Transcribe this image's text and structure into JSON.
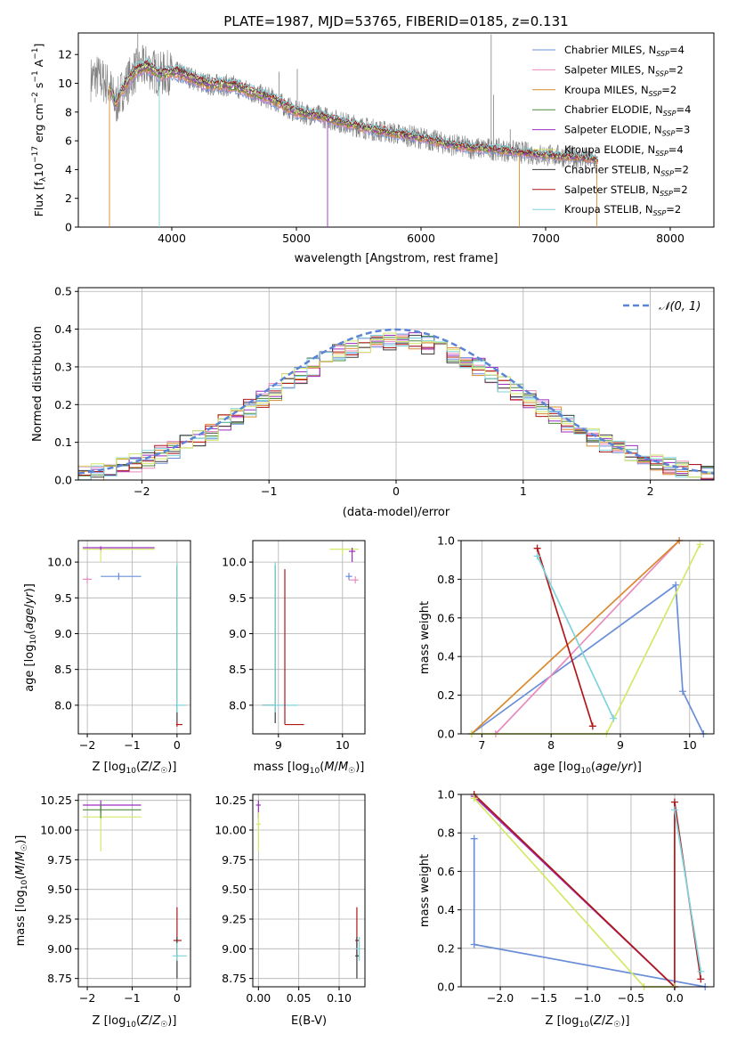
{
  "figure": {
    "title": "PLATE=1987, MJD=53765, FIBERID=0185, z=0.131"
  },
  "series_names": [
    "Chabrier MILES, N_SSP=4",
    "Salpeter MILES, N_SSP=2",
    "Kroupa MILES, N_SSP=2",
    "Chabrier ELODIE, N_SSP=4",
    "Salpeter ELODIE, N_SSP=3",
    "Kroupa ELODIE, N_SSP=4",
    "Chabrier STELIB, N_SSP=2",
    "Salpeter STELIB, N_SSP=2",
    "Kroupa STELIB, N_SSP=2"
  ],
  "legend_main": [
    {
      "prefix": "Chabrier MILES, N",
      "sub": "SSP",
      "suffix": "=4"
    },
    {
      "prefix": "Salpeter MILES, N",
      "sub": "SSP",
      "suffix": "=2"
    },
    {
      "prefix": "Kroupa MILES, N",
      "sub": "SSP",
      "suffix": "=2"
    },
    {
      "prefix": "Chabrier ELODIE, N",
      "sub": "SSP",
      "suffix": "=4"
    },
    {
      "prefix": "Salpeter ELODIE, N",
      "sub": "SSP",
      "suffix": "=3"
    },
    {
      "prefix": "Kroupa ELODIE, N",
      "sub": "SSP",
      "suffix": "=4"
    },
    {
      "prefix": "Chabrier STELIB, N",
      "sub": "SSP",
      "suffix": "=2"
    },
    {
      "prefix": "Salpeter STELIB, N",
      "sub": "SSP",
      "suffix": "=2"
    },
    {
      "prefix": "Kroupa STELIB, N",
      "sub": "SSP",
      "suffix": "=2"
    }
  ],
  "colors": {
    "data": "#808080",
    "series": [
      "#6a8fd8",
      "#e88bbf",
      "#d98a2e",
      "#4f8a3c",
      "#9a2fbf",
      "#d4e86a",
      "#3a3a3a",
      "#b01818",
      "#7ed4dc"
    ],
    "normal": "#5b84d6",
    "grid": "#b0b0b0"
  },
  "chart_data": [
    {
      "id": "spectrum",
      "type": "line",
      "title": "PLATE=1987, MJD=53765, FIBERID=0185, z=0.131",
      "xlabel": "wavelength [Angstrom, rest frame]",
      "ylabel": "Flux [f_λ 10^-17 erg cm^-2 s^-1 A^-1]",
      "xlim": [
        3250,
        8350
      ],
      "ylim": [
        0,
        13.5
      ],
      "xticks": [
        4000,
        5000,
        6000,
        7000,
        8000
      ],
      "yticks": [
        0,
        2,
        4,
        6,
        8,
        10,
        12
      ],
      "grid": false,
      "legend": "top-right",
      "data_spectrum": {
        "x": [
          3350,
          3400,
          3500,
          3550,
          3600,
          3700,
          3800,
          3900,
          4000,
          4100,
          4200,
          4300,
          4400,
          4500,
          4600,
          4800,
          5000,
          5200,
          5400,
          5600,
          5800,
          6000,
          6200,
          6400,
          6600,
          6800,
          7000,
          7200,
          7400
        ],
        "y": [
          10.3,
          10.5,
          9.8,
          8.5,
          9.5,
          10.8,
          11.2,
          10.6,
          10.8,
          10.6,
          10.2,
          9.9,
          9.9,
          9.8,
          9.5,
          8.9,
          8.0,
          7.7,
          7.2,
          6.8,
          6.5,
          6.2,
          5.8,
          5.5,
          5.4,
          5.2,
          5.0,
          4.9,
          4.7
        ]
      },
      "model_x_range": [
        3500,
        7420
      ]
    },
    {
      "id": "residuals",
      "type": "histogram",
      "xlabel": "(data-model)/error",
      "ylabel": "Normed distribution",
      "xlim": [
        -2.5,
        2.5
      ],
      "ylim": [
        0,
        0.51
      ],
      "xticks": [
        -2,
        -1,
        0,
        1,
        2
      ],
      "yticks": [
        0.0,
        0.1,
        0.2,
        0.3,
        0.4,
        0.5
      ],
      "grid": true,
      "legend": "top-right",
      "reference_curve": {
        "name": "N(0,1)",
        "mean": 0,
        "sigma": 1
      },
      "bin_width": 0.1
    },
    {
      "id": "age_vs_Z",
      "type": "scatter",
      "xlabel": "Z [log10(Z/Z☉)]",
      "ylabel": "age [log10(age/yr)]",
      "xlim": [
        -2.2,
        0.3
      ],
      "ylim": [
        7.6,
        10.3
      ],
      "xticks": [
        -2,
        -1,
        0
      ],
      "yticks": [
        8.0,
        8.5,
        9.0,
        9.5,
        10.0
      ],
      "grid": true
    },
    {
      "id": "age_vs_mass",
      "type": "scatter",
      "xlabel": "mass [log10(M/M☉)]",
      "xlim": [
        8.6,
        10.35
      ],
      "ylim": [
        7.6,
        10.3
      ],
      "xticks": [
        9,
        10
      ],
      "yticks": [
        8.0,
        8.5,
        9.0,
        9.5,
        10.0
      ],
      "grid": true
    },
    {
      "id": "weight_vs_age",
      "type": "line",
      "xlabel": "age [log10(age/yr)]",
      "ylabel": "mass weight",
      "xlim": [
        6.7,
        10.35
      ],
      "ylim": [
        0,
        1.0
      ],
      "xticks": [
        7,
        8,
        9,
        10
      ],
      "yticks": [
        0.0,
        0.2,
        0.4,
        0.6,
        0.8,
        1.0
      ],
      "grid": true,
      "series": [
        {
          "index": 0,
          "x": [
            6.85,
            9.8,
            9.9,
            10.2
          ],
          "y": [
            0.0,
            0.77,
            0.22,
            0.0
          ]
        },
        {
          "index": 1,
          "x": [
            7.2,
            9.85
          ],
          "y": [
            0.0,
            1.0
          ]
        },
        {
          "index": 2,
          "x": [
            6.85,
            9.85
          ],
          "y": [
            0.0,
            1.0
          ]
        },
        {
          "index": 5,
          "x": [
            6.85,
            8.8,
            10.15
          ],
          "y": [
            0.0,
            0.0,
            0.98
          ]
        },
        {
          "index": 7,
          "x": [
            7.8,
            8.6
          ],
          "y": [
            0.96,
            0.04
          ]
        },
        {
          "index": 8,
          "x": [
            7.8,
            8.9
          ],
          "y": [
            0.92,
            0.08
          ]
        }
      ]
    },
    {
      "id": "mass_vs_Z",
      "type": "scatter",
      "xlabel": "Z [log10(Z/Z☉)]",
      "ylabel": "mass [log10(M/M☉)]",
      "xlim": [
        -2.2,
        0.3
      ],
      "ylim": [
        8.68,
        10.3
      ],
      "xticks": [
        -2,
        -1,
        0
      ],
      "yticks": [
        8.75,
        9.0,
        9.25,
        9.5,
        9.75,
        10.0,
        10.25
      ],
      "grid": true
    },
    {
      "id": "mass_vs_EBV",
      "type": "scatter",
      "xlabel": "E(B-V)",
      "xlim": [
        -0.007,
        0.132
      ],
      "ylim": [
        8.68,
        10.3
      ],
      "xticks": [
        0.0,
        0.05,
        0.1
      ],
      "yticks": [
        8.75,
        9.0,
        9.25,
        9.5,
        9.75,
        10.0,
        10.25
      ],
      "grid": true
    },
    {
      "id": "weight_vs_Z",
      "type": "line",
      "xlabel": "Z [log10(Z/Z☉)]",
      "ylabel": "mass weight",
      "xlim": [
        -2.45,
        0.45
      ],
      "ylim": [
        0,
        1.0
      ],
      "xticks": [
        -2.0,
        -1.5,
        -1.0,
        -0.5,
        0.0
      ],
      "yticks": [
        0.0,
        0.2,
        0.4,
        0.6,
        0.8,
        1.0
      ],
      "grid": true,
      "series": [
        {
          "index": 0,
          "x": [
            -2.3,
            -2.3,
            0.35
          ],
          "y": [
            0.77,
            0.22,
            0.0
          ]
        },
        {
          "index": 4,
          "x": [
            -2.3,
            0.0
          ],
          "y": [
            0.99,
            0.0
          ]
        },
        {
          "index": 7,
          "x": [
            -2.3,
            0.0,
            0.0,
            0.3
          ],
          "y": [
            1.0,
            0.0,
            0.96,
            0.04
          ]
        },
        {
          "index": 5,
          "x": [
            -2.3,
            -0.35,
            0.0
          ],
          "y": [
            0.98,
            0.0,
            0.0
          ]
        },
        {
          "index": 8,
          "x": [
            0.0,
            0.3
          ],
          "y": [
            0.92,
            0.08
          ]
        }
      ]
    }
  ],
  "tick_text": {
    "spectrum_x": [
      "4000",
      "5000",
      "6000",
      "7000",
      "8000"
    ],
    "spectrum_y": [
      "0",
      "2",
      "4",
      "6",
      "8",
      "10",
      "12"
    ],
    "resid_x": [
      "−2",
      "−1",
      "0",
      "1",
      "2"
    ],
    "resid_y": [
      "0.0",
      "0.1",
      "0.2",
      "0.3",
      "0.4",
      "0.5"
    ],
    "z_x": [
      "−2",
      "−1",
      "0"
    ],
    "age_y": [
      "8.0",
      "8.5",
      "9.0",
      "9.5",
      "10.0"
    ],
    "mass_x": [
      "9",
      "10"
    ],
    "wage_x": [
      "7",
      "8",
      "9",
      "10"
    ],
    "w_y": [
      "0.0",
      "0.2",
      "0.4",
      "0.6",
      "0.8",
      "1.0"
    ],
    "mass_y": [
      "8.75",
      "9.00",
      "9.25",
      "9.50",
      "9.75",
      "10.00",
      "10.25"
    ],
    "ebv_x": [
      "0.00",
      "0.05",
      "0.10"
    ],
    "wz_x": [
      "−2.0",
      "−1.5",
      "−1.0",
      "−0.5",
      "0.0"
    ]
  },
  "labels": {
    "spectrum_xlabel": "wavelength [Angstrom, rest frame]",
    "resid_xlabel": "(data-model)/error",
    "resid_ylabel": "Normed distribution",
    "normal_legend": "𝒩(0, 1)",
    "mass_weight": "mass weight",
    "ebv": "E(B-V)"
  }
}
